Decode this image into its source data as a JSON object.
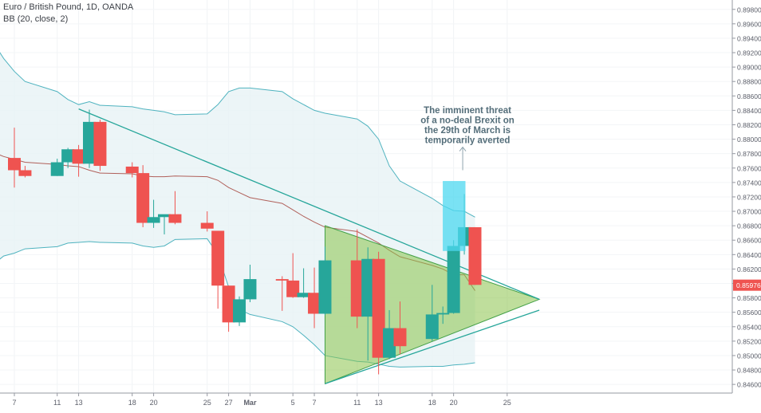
{
  "legend": {
    "title": "Euro / British Pound, 1D, OANDA",
    "indicator": "BB (20, close, 2)"
  },
  "colors": {
    "up": "#26a69a",
    "down": "#ef5350",
    "band_line": "#4fb3bf",
    "band_fill": "#e7f3f5",
    "basis": "#b0605a",
    "trendline": "#26a69a",
    "triangle_fill": "#8bc34a",
    "triangle_edge": "#43a047",
    "highlight": "#4dd8f0",
    "annotation": "#546e7a",
    "last_price_bg": "#ef5350",
    "axis_text": "#5d606b"
  },
  "annotation": {
    "lines": [
      "The imminent threat",
      "of a no-deal Brexit on",
      "the 29th of March is",
      "temporarily averted"
    ]
  },
  "chart_data": {
    "type": "candlestick",
    "title": "Euro / British Pound, 1D, OANDA",
    "indicator": "BB (20, close, 2)",
    "ylim": [
      0.8448,
      0.8993
    ],
    "y_ticks": [
      0.846,
      0.848,
      0.85,
      0.852,
      0.854,
      0.856,
      0.858,
      0.86,
      0.862,
      0.864,
      0.866,
      0.868,
      0.87,
      0.872,
      0.874,
      0.876,
      0.878,
      0.88,
      0.882,
      0.884,
      0.886,
      0.888,
      0.89,
      0.892,
      0.894,
      0.896,
      0.898
    ],
    "y_tick_labels": [
      "0.84600",
      "0.84800",
      "0.85000",
      "0.85200",
      "0.85400",
      "0.85600",
      "0.85800",
      "0.86000",
      "0.86200",
      "0.86400",
      "0.86600",
      "0.86800",
      "0.87000",
      "0.87200",
      "0.87400",
      "0.87600",
      "0.87800",
      "0.88000",
      "0.88200",
      "0.88400",
      "0.88600",
      "0.88800",
      "0.89000",
      "0.89200",
      "0.89400",
      "0.89600",
      "0.89800"
    ],
    "last_price": 0.85976,
    "last_price_label": "0.85976",
    "x_ticks": [
      {
        "label": "7",
        "date": "2019-02-07"
      },
      {
        "label": "11",
        "date": "2019-02-11"
      },
      {
        "label": "13",
        "date": "2019-02-13"
      },
      {
        "label": "18",
        "date": "2019-02-18"
      },
      {
        "label": "20",
        "date": "2019-02-20"
      },
      {
        "label": "25",
        "date": "2019-02-25"
      },
      {
        "label": "27",
        "date": "2019-02-27"
      },
      {
        "label": "Mar",
        "date": "2019-03-01",
        "bold": true
      },
      {
        "label": "5",
        "date": "2019-03-05"
      },
      {
        "label": "7",
        "date": "2019-03-07"
      },
      {
        "label": "11",
        "date": "2019-03-11"
      },
      {
        "label": "13",
        "date": "2019-03-13"
      },
      {
        "label": "18",
        "date": "2019-03-18"
      },
      {
        "label": "20",
        "date": "2019-03-20"
      },
      {
        "label": "25",
        "date": "2019-03-25"
      }
    ],
    "candles": [
      {
        "date": "2019-02-07",
        "o": 0.8774,
        "h": 0.8816,
        "l": 0.8733,
        "c": 0.8757
      },
      {
        "date": "2019-02-08",
        "o": 0.8757,
        "h": 0.8763,
        "l": 0.8747,
        "c": 0.8749
      },
      {
        "date": "2019-02-11",
        "o": 0.8749,
        "h": 0.8773,
        "l": 0.8749,
        "c": 0.8768
      },
      {
        "date": "2019-02-12",
        "o": 0.8768,
        "h": 0.8788,
        "l": 0.876,
        "c": 0.8786
      },
      {
        "date": "2019-02-13",
        "o": 0.8786,
        "h": 0.8792,
        "l": 0.8748,
        "c": 0.8766
      },
      {
        "date": "2019-02-14",
        "o": 0.8766,
        "h": 0.8841,
        "l": 0.876,
        "c": 0.8824
      },
      {
        "date": "2019-02-15",
        "o": 0.8824,
        "h": 0.8827,
        "l": 0.8756,
        "c": 0.8763
      },
      {
        "date": "2019-02-18",
        "o": 0.8762,
        "h": 0.8768,
        "l": 0.8747,
        "c": 0.8753
      },
      {
        "date": "2019-02-19",
        "o": 0.8753,
        "h": 0.8764,
        "l": 0.8678,
        "c": 0.8684
      },
      {
        "date": "2019-02-20",
        "o": 0.8684,
        "h": 0.8716,
        "l": 0.8677,
        "c": 0.8692
      },
      {
        "date": "2019-02-21",
        "o": 0.8692,
        "h": 0.8695,
        "l": 0.8668,
        "c": 0.8696
      },
      {
        "date": "2019-02-22",
        "o": 0.8696,
        "h": 0.8728,
        "l": 0.8682,
        "c": 0.8684
      },
      {
        "date": "2019-02-25",
        "o": 0.8684,
        "h": 0.87,
        "l": 0.8672,
        "c": 0.8676
      },
      {
        "date": "2019-02-26",
        "o": 0.8673,
        "h": 0.8673,
        "l": 0.8565,
        "c": 0.8597
      },
      {
        "date": "2019-02-27",
        "o": 0.8597,
        "h": 0.8597,
        "l": 0.8533,
        "c": 0.8546
      },
      {
        "date": "2019-02-28",
        "o": 0.8546,
        "h": 0.8582,
        "l": 0.8541,
        "c": 0.8578
      },
      {
        "date": "2019-03-01",
        "o": 0.8578,
        "h": 0.8626,
        "l": 0.8574,
        "c": 0.8606
      },
      {
        "date": "2019-03-04",
        "o": 0.8606,
        "h": 0.861,
        "l": 0.8562,
        "c": 0.8604
      },
      {
        "date": "2019-03-05",
        "o": 0.8604,
        "h": 0.8642,
        "l": 0.858,
        "c": 0.8581
      },
      {
        "date": "2019-03-06",
        "o": 0.8581,
        "h": 0.8621,
        "l": 0.858,
        "c": 0.8587
      },
      {
        "date": "2019-03-07",
        "o": 0.8587,
        "h": 0.8622,
        "l": 0.8538,
        "c": 0.8558
      },
      {
        "date": "2019-03-08",
        "o": 0.8558,
        "h": 0.8651,
        "l": 0.8556,
        "c": 0.8632
      },
      {
        "date": "2019-03-11",
        "o": 0.8632,
        "h": 0.8675,
        "l": 0.8538,
        "c": 0.8554
      },
      {
        "date": "2019-03-12",
        "o": 0.8554,
        "h": 0.865,
        "l": 0.8493,
        "c": 0.8634
      },
      {
        "date": "2019-03-13",
        "o": 0.8634,
        "h": 0.8644,
        "l": 0.8474,
        "c": 0.8497
      },
      {
        "date": "2019-03-14",
        "o": 0.8497,
        "h": 0.8563,
        "l": 0.8495,
        "c": 0.8538
      },
      {
        "date": "2019-03-15",
        "o": 0.8538,
        "h": 0.8575,
        "l": 0.8502,
        "c": 0.8513
      },
      {
        "date": "2019-03-18",
        "o": 0.8523,
        "h": 0.8598,
        "l": 0.852,
        "c": 0.8557
      },
      {
        "date": "2019-03-19",
        "o": 0.8557,
        "h": 0.8568,
        "l": 0.8544,
        "c": 0.8559
      },
      {
        "date": "2019-03-20",
        "o": 0.8559,
        "h": 0.866,
        "l": 0.8558,
        "c": 0.8652
      },
      {
        "date": "2019-03-21",
        "o": 0.8652,
        "h": 0.8724,
        "l": 0.864,
        "c": 0.8678
      },
      {
        "date": "2019-03-22",
        "o": 0.8678,
        "h": 0.8678,
        "l": 0.8598,
        "c": 0.8598
      }
    ],
    "bollinger": {
      "dates": [
        "2019-02-04",
        "2019-02-05",
        "2019-02-06",
        "2019-02-07",
        "2019-02-08",
        "2019-02-11",
        "2019-02-12",
        "2019-02-13",
        "2019-02-14",
        "2019-02-15",
        "2019-02-18",
        "2019-02-19",
        "2019-02-20",
        "2019-02-21",
        "2019-02-22",
        "2019-02-25",
        "2019-02-26",
        "2019-02-27",
        "2019-02-28",
        "2019-03-01",
        "2019-03-04",
        "2019-03-05",
        "2019-03-06",
        "2019-03-07",
        "2019-03-08",
        "2019-03-11",
        "2019-03-12",
        "2019-03-13",
        "2019-03-14",
        "2019-03-15",
        "2019-03-18",
        "2019-03-19",
        "2019-03-20",
        "2019-03-21",
        "2019-03-22"
      ],
      "upper": [
        0.8955,
        0.8935,
        0.8912,
        0.8894,
        0.888,
        0.8866,
        0.8855,
        0.8848,
        0.8852,
        0.8847,
        0.8845,
        0.8842,
        0.884,
        0.8838,
        0.8834,
        0.8835,
        0.8848,
        0.8866,
        0.8871,
        0.8871,
        0.8866,
        0.8856,
        0.8848,
        0.884,
        0.8836,
        0.8828,
        0.8818,
        0.88,
        0.8763,
        0.8742,
        0.8718,
        0.8708,
        0.8701,
        0.87,
        0.8692
      ],
      "basis": [
        0.8788,
        0.8782,
        0.8776,
        0.8772,
        0.8768,
        0.8765,
        0.8763,
        0.8762,
        0.8757,
        0.8753,
        0.8752,
        0.8749,
        0.8748,
        0.8748,
        0.8749,
        0.8748,
        0.8743,
        0.8733,
        0.8726,
        0.8719,
        0.8711,
        0.8702,
        0.8693,
        0.8685,
        0.8678,
        0.8672,
        0.8664,
        0.8656,
        0.8646,
        0.8637,
        0.8625,
        0.862,
        0.8612,
        0.8612,
        0.859
      ],
      "lower": [
        0.8612,
        0.8626,
        0.8638,
        0.8642,
        0.8648,
        0.8651,
        0.8656,
        0.8657,
        0.8658,
        0.8657,
        0.8656,
        0.8652,
        0.865,
        0.8652,
        0.8661,
        0.8662,
        0.864,
        0.8595,
        0.8564,
        0.8557,
        0.8547,
        0.854,
        0.8528,
        0.8515,
        0.85,
        0.8492,
        0.8491,
        0.8488,
        0.8485,
        0.8484,
        0.8485,
        0.8485,
        0.8487,
        0.8488,
        0.849
      ]
    },
    "trendline_upper": [
      {
        "date": "2019-02-13",
        "y": 0.8842
      },
      {
        "date": "2019-03-28",
        "y": 0.8578
      }
    ],
    "trendline_lower": [
      {
        "date": "2019-03-08",
        "y": 0.8461
      },
      {
        "date": "2019-03-28",
        "y": 0.8563
      }
    ],
    "triangle": [
      {
        "date": "2019-03-08",
        "y": 0.868
      },
      {
        "date": "2019-03-08",
        "y": 0.8461
      },
      {
        "date": "2019-03-28",
        "y": 0.8578
      }
    ],
    "highlight_box": {
      "date_from": "2019-03-21",
      "date_to": "2019-03-22",
      "y_from": 0.8645,
      "y_to": 0.8742
    },
    "annotation_arrow": {
      "date": "2019-03-21",
      "y_from": 0.8757,
      "y_to": 0.8789
    }
  }
}
